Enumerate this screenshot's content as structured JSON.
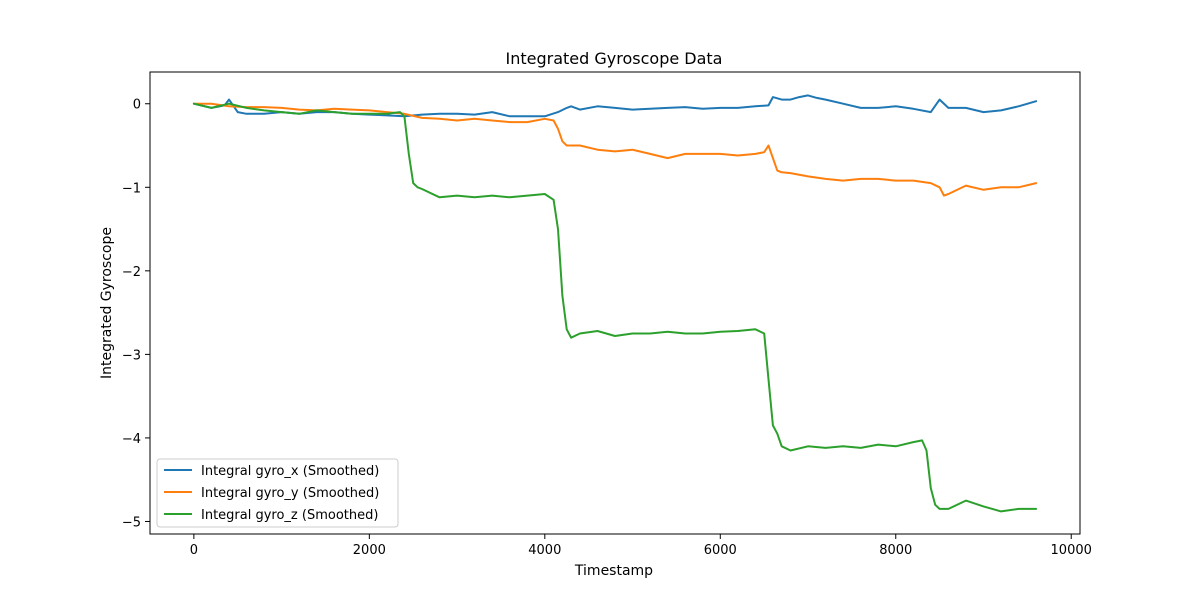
{
  "chart_data": {
    "type": "line",
    "title": "Integrated Gyroscope Data",
    "xlabel": "Timestamp",
    "ylabel": "Integrated Gyroscope",
    "xlim": [
      -500,
      10100
    ],
    "ylim": [
      -5.15,
      0.38
    ],
    "xticks": [
      0,
      2000,
      4000,
      6000,
      8000,
      10000
    ],
    "xtick_labels": [
      "0",
      "2000",
      "4000",
      "6000",
      "8000",
      "10000"
    ],
    "yticks": [
      0,
      -1,
      -2,
      -3,
      -4,
      -5
    ],
    "ytick_labels": [
      "0",
      "−1",
      "−2",
      "−3",
      "−4",
      "−5"
    ],
    "grid": false,
    "legend_position": "lower-left",
    "series": [
      {
        "name": "Integral gyro_x (Smoothed)",
        "color": "#1f77b4",
        "x": [
          0,
          200,
          350,
          400,
          500,
          600,
          800,
          1000,
          1200,
          1400,
          1600,
          1800,
          2000,
          2200,
          2400,
          2600,
          2800,
          3000,
          3200,
          3400,
          3600,
          3800,
          4000,
          4150,
          4250,
          4300,
          4400,
          4600,
          4800,
          5000,
          5200,
          5400,
          5600,
          5800,
          6000,
          6200,
          6400,
          6550,
          6600,
          6700,
          6800,
          6900,
          7000,
          7100,
          7200,
          7400,
          7600,
          7800,
          8000,
          8200,
          8400,
          8500,
          8600,
          8800,
          9000,
          9200,
          9400,
          9600
        ],
        "y": [
          0.0,
          -0.05,
          -0.02,
          0.05,
          -0.1,
          -0.12,
          -0.12,
          -0.1,
          -0.12,
          -0.1,
          -0.1,
          -0.12,
          -0.13,
          -0.14,
          -0.15,
          -0.13,
          -0.12,
          -0.12,
          -0.13,
          -0.1,
          -0.15,
          -0.15,
          -0.15,
          -0.1,
          -0.05,
          -0.03,
          -0.07,
          -0.03,
          -0.05,
          -0.07,
          -0.06,
          -0.05,
          -0.04,
          -0.06,
          -0.05,
          -0.05,
          -0.03,
          -0.02,
          0.08,
          0.05,
          0.05,
          0.08,
          0.1,
          0.07,
          0.05,
          0.0,
          -0.05,
          -0.05,
          -0.03,
          -0.06,
          -0.1,
          0.05,
          -0.05,
          -0.05,
          -0.1,
          -0.08,
          -0.03,
          0.03
        ]
      },
      {
        "name": "Integral gyro_y (Smoothed)",
        "color": "#ff7f0e",
        "x": [
          0,
          200,
          400,
          600,
          800,
          1000,
          1200,
          1400,
          1600,
          1800,
          2000,
          2200,
          2400,
          2600,
          2800,
          3000,
          3200,
          3400,
          3600,
          3800,
          4000,
          4100,
          4150,
          4200,
          4250,
          4300,
          4400,
          4600,
          4800,
          5000,
          5200,
          5400,
          5600,
          5800,
          6000,
          6200,
          6400,
          6500,
          6550,
          6600,
          6650,
          6700,
          6800,
          7000,
          7200,
          7400,
          7600,
          7800,
          8000,
          8200,
          8400,
          8500,
          8550,
          8600,
          8800,
          9000,
          9200,
          9400,
          9600
        ],
        "y": [
          0.0,
          0.0,
          -0.03,
          -0.04,
          -0.04,
          -0.05,
          -0.07,
          -0.08,
          -0.06,
          -0.07,
          -0.08,
          -0.1,
          -0.12,
          -0.17,
          -0.18,
          -0.2,
          -0.18,
          -0.2,
          -0.22,
          -0.22,
          -0.18,
          -0.2,
          -0.3,
          -0.45,
          -0.5,
          -0.5,
          -0.5,
          -0.55,
          -0.57,
          -0.55,
          -0.6,
          -0.65,
          -0.6,
          -0.6,
          -0.6,
          -0.62,
          -0.6,
          -0.58,
          -0.5,
          -0.65,
          -0.8,
          -0.82,
          -0.83,
          -0.87,
          -0.9,
          -0.92,
          -0.9,
          -0.9,
          -0.92,
          -0.92,
          -0.95,
          -1.0,
          -1.1,
          -1.08,
          -0.98,
          -1.03,
          -1.0,
          -1.0,
          -0.95
        ]
      },
      {
        "name": "Integral gyro_z (Smoothed)",
        "color": "#2ca02c",
        "x": [
          0,
          200,
          400,
          600,
          800,
          1000,
          1200,
          1400,
          1600,
          1800,
          2000,
          2200,
          2350,
          2400,
          2450,
          2500,
          2550,
          2600,
          2800,
          3000,
          3200,
          3400,
          3600,
          3800,
          4000,
          4100,
          4150,
          4200,
          4250,
          4300,
          4400,
          4600,
          4800,
          5000,
          5200,
          5400,
          5600,
          5800,
          6000,
          6200,
          6400,
          6500,
          6550,
          6600,
          6650,
          6700,
          6800,
          7000,
          7200,
          7400,
          7600,
          7800,
          8000,
          8200,
          8300,
          8350,
          8400,
          8450,
          8500,
          8600,
          8800,
          9000,
          9200,
          9400,
          9600
        ],
        "y": [
          0.0,
          -0.05,
          0.0,
          -0.05,
          -0.08,
          -0.1,
          -0.12,
          -0.08,
          -0.1,
          -0.12,
          -0.12,
          -0.12,
          -0.1,
          -0.15,
          -0.6,
          -0.95,
          -1.0,
          -1.02,
          -1.12,
          -1.1,
          -1.12,
          -1.1,
          -1.12,
          -1.1,
          -1.08,
          -1.15,
          -1.5,
          -2.3,
          -2.7,
          -2.8,
          -2.75,
          -2.72,
          -2.78,
          -2.75,
          -2.75,
          -2.73,
          -2.75,
          -2.75,
          -2.73,
          -2.72,
          -2.7,
          -2.75,
          -3.3,
          -3.85,
          -3.95,
          -4.1,
          -4.15,
          -4.1,
          -4.12,
          -4.1,
          -4.12,
          -4.08,
          -4.1,
          -4.05,
          -4.03,
          -4.15,
          -4.6,
          -4.8,
          -4.85,
          -4.85,
          -4.75,
          -4.82,
          -4.88,
          -4.85,
          -4.85
        ]
      }
    ]
  }
}
